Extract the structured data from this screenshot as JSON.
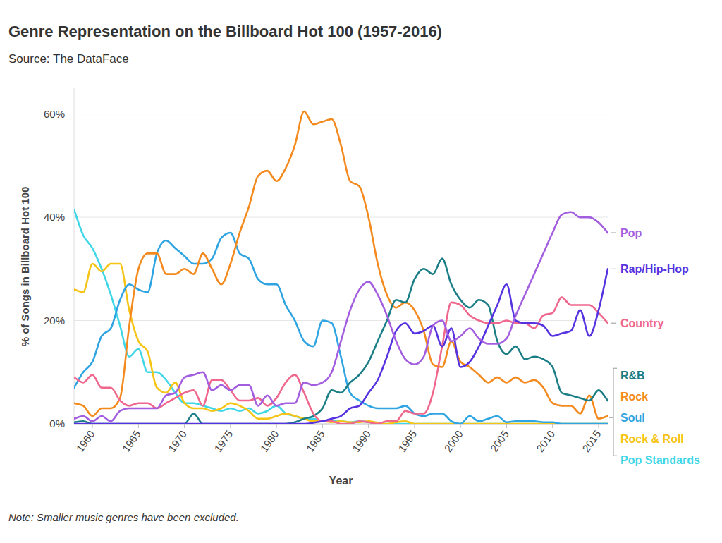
{
  "chart_data": {
    "type": "line",
    "title": "Genre Representation on the Billboard Hot 100 (1957-2016)",
    "subtitle": "Source: The DataFace",
    "x_label": "Year",
    "y_label": "% of Songs in Billboard Hot 100",
    "note": "Note: Smaller music genres have been excluded.",
    "grid": true,
    "legend": "right",
    "xlim": [
      1958,
      2016
    ],
    "xticks": [
      1960,
      1965,
      1970,
      1975,
      1980,
      1985,
      1990,
      1995,
      2000,
      2005,
      2010,
      2015
    ],
    "ylim": [
      0,
      65
    ],
    "yticks": [
      {
        "value": 0,
        "label": "0%"
      },
      {
        "value": 20,
        "label": "20%"
      },
      {
        "value": 40,
        "label": "40%"
      },
      {
        "value": 60,
        "label": "60%"
      }
    ],
    "x": [
      1958,
      1959,
      1960,
      1961,
      1962,
      1963,
      1964,
      1965,
      1966,
      1967,
      1968,
      1969,
      1970,
      1971,
      1972,
      1973,
      1974,
      1975,
      1976,
      1977,
      1978,
      1979,
      1980,
      1981,
      1982,
      1983,
      1984,
      1985,
      1986,
      1987,
      1988,
      1989,
      1990,
      1991,
      1992,
      1993,
      1994,
      1995,
      1996,
      1997,
      1998,
      1999,
      2000,
      2001,
      2002,
      2003,
      2004,
      2005,
      2006,
      2007,
      2008,
      2009,
      2010,
      2011,
      2012,
      2013,
      2014,
      2015,
      2016
    ],
    "series": [
      {
        "name": "Pop",
        "color": "#a35ee0",
        "values": [
          1,
          1.5,
          0.5,
          1.5,
          0.5,
          2.5,
          3,
          3,
          3,
          3,
          5.5,
          6,
          9,
          9.5,
          10,
          6.5,
          7.5,
          6.5,
          7.5,
          7.5,
          3.5,
          5.5,
          3.5,
          4,
          4,
          8,
          7.5,
          8,
          10,
          16,
          22,
          26,
          27.5,
          25,
          21,
          16,
          12.5,
          11.5,
          13,
          19,
          20,
          16,
          17,
          18.5,
          16.5,
          15.5,
          15.5,
          16.5,
          21,
          25,
          29,
          33,
          37,
          40.5,
          41,
          40,
          40,
          39,
          37
        ]
      },
      {
        "name": "Rap/Hip-Hop",
        "color": "#5632e0",
        "values": [
          0,
          0,
          0,
          0,
          0,
          0,
          0,
          0,
          0,
          0,
          0,
          0,
          0,
          0,
          0,
          0,
          0,
          0,
          0,
          0,
          0,
          0,
          0,
          0,
          0,
          0,
          0.2,
          0.5,
          1,
          1.5,
          3,
          3.5,
          6,
          8.5,
          13,
          18,
          19.5,
          17.5,
          18,
          19,
          15,
          18.5,
          11,
          12,
          15,
          19,
          23,
          27,
          20,
          19.5,
          19.5,
          19,
          17,
          17.5,
          18,
          22,
          17,
          22,
          30
        ]
      },
      {
        "name": "Country",
        "color": "#f0678e",
        "values": [
          9,
          8,
          9.5,
          7,
          7,
          4.5,
          3.5,
          4,
          4,
          3,
          4,
          5,
          6,
          6.5,
          3.5,
          8.5,
          8.5,
          6.5,
          4.5,
          4.5,
          5,
          3.5,
          5,
          8,
          9.5,
          6,
          2,
          0.5,
          0.5,
          0,
          0,
          0.5,
          0.3,
          0,
          0.5,
          0.5,
          2.5,
          2,
          2,
          6,
          15,
          23.5,
          23,
          21,
          20,
          19.5,
          19.5,
          20,
          19.5,
          19.5,
          18.5,
          21,
          21.5,
          24.5,
          23,
          23,
          23,
          21.5,
          19.5
        ]
      },
      {
        "name": "R&B",
        "color": "#1b7e86",
        "values": [
          0.3,
          0.5,
          0,
          0,
          0,
          0,
          0,
          0,
          0,
          0,
          0,
          0,
          0,
          2,
          0,
          0,
          0,
          0,
          0,
          0,
          0,
          0,
          0,
          0,
          0.3,
          1,
          1.5,
          3,
          6.5,
          6,
          8,
          9.5,
          12,
          16,
          20,
          24,
          23.5,
          28,
          30,
          29,
          32,
          27,
          24,
          22.5,
          24,
          23,
          16,
          13.5,
          15,
          12.5,
          13,
          12.5,
          11,
          6,
          5.5,
          5,
          4.5,
          6.5,
          4.5
        ]
      },
      {
        "name": "Rock",
        "color": "#f48a1d",
        "values": [
          4,
          3.5,
          1.5,
          3,
          3,
          5,
          19,
          30,
          33,
          33,
          29,
          29,
          30,
          29,
          33,
          30,
          27,
          31,
          37,
          42,
          48,
          49,
          47,
          49.5,
          54,
          60.5,
          58,
          58.5,
          59,
          54,
          47,
          46,
          40,
          31,
          25,
          22.5,
          23.5,
          22,
          18,
          11.5,
          11,
          16,
          12,
          11,
          9.5,
          8,
          9,
          8,
          9,
          8,
          8.5,
          7,
          4,
          3.5,
          3.5,
          2,
          5.5,
          1,
          1.5
        ]
      },
      {
        "name": "Soul",
        "color": "#2fa4e2",
        "values": [
          7,
          10,
          12,
          17,
          18.5,
          24,
          27,
          26,
          25.5,
          33,
          35.5,
          34,
          32.5,
          31,
          31,
          32,
          36,
          37,
          33,
          32,
          28,
          27,
          27,
          23,
          20,
          16,
          15,
          20,
          19.5,
          13,
          6,
          4.5,
          3.5,
          3,
          3,
          3,
          3.5,
          2,
          1.5,
          2,
          2,
          0.5,
          0,
          1.5,
          0.5,
          1,
          1.5,
          0.3,
          0.5,
          0.5,
          0.5,
          0.3,
          0.3,
          0,
          0,
          0,
          0,
          0,
          0
        ]
      },
      {
        "name": "Rock & Roll",
        "color": "#f6c415",
        "values": [
          26,
          25.5,
          31,
          29.5,
          31,
          31,
          22,
          16,
          14,
          7,
          6,
          8,
          4,
          3,
          3,
          2.5,
          3,
          4,
          3.5,
          2.5,
          1,
          1,
          1.5,
          2,
          1.5,
          1,
          0.5,
          0.5,
          0.3,
          0.5,
          0.3,
          0.3,
          0.5,
          0.2,
          0,
          0.3,
          0.5,
          0,
          0,
          0,
          0,
          0,
          0,
          0,
          0,
          0,
          0,
          0,
          0,
          0,
          0,
          0,
          0,
          0,
          0,
          0,
          0,
          0,
          0
        ]
      },
      {
        "name": "Pop Standards",
        "color": "#3fd7e8",
        "values": [
          41.5,
          36.5,
          34,
          30,
          25,
          19,
          13,
          14.5,
          10,
          10,
          8.5,
          6,
          4,
          4,
          3.5,
          3,
          2.5,
          3,
          2.5,
          3,
          2,
          2.5,
          3.5,
          2,
          1.5,
          1,
          1,
          0.5,
          0.5,
          0.5,
          0.3,
          0.5,
          0.3,
          0,
          0,
          0,
          0,
          0,
          0,
          0,
          0,
          0,
          0,
          0,
          0,
          0,
          0,
          0,
          0,
          0,
          0,
          0,
          0,
          0,
          0,
          0,
          0,
          0,
          0
        ]
      }
    ]
  }
}
